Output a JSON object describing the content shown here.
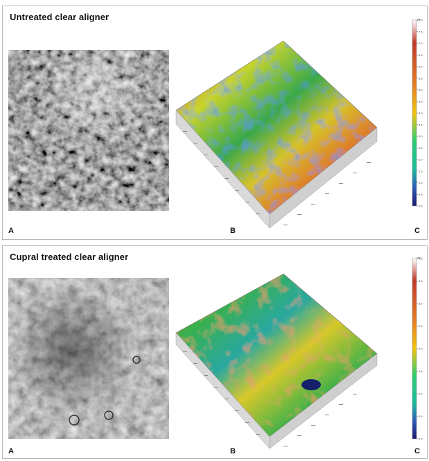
{
  "panels": [
    {
      "title": "Untreated clear aligner",
      "labels": {
        "a": "A",
        "b": "B",
        "c": "C"
      },
      "colorbar": {
        "unit": "µm",
        "ticks": [
          "8.0",
          "7.5",
          "7.0",
          "6.5",
          "6.0",
          "5.5",
          "5.0",
          "4.5",
          "4.0",
          "3.5",
          "3.0",
          "2.5",
          "2.0",
          "1.5",
          "1.0",
          "0.5",
          "0.0"
        ]
      }
    },
    {
      "title": "Cupral treated clear aligner",
      "labels": {
        "a": "A",
        "b": "B",
        "c": "C"
      },
      "colorbar": {
        "unit": "µm",
        "ticks": [
          "4.0",
          "3.5",
          "3.0",
          "2.5",
          "2.0",
          "1.5",
          "1.0",
          "0.5",
          "0.0"
        ]
      }
    }
  ],
  "colors": {
    "border": "#b8b8b8",
    "scale_low": "#1a1a6e",
    "scale_high": "#ffffff"
  }
}
